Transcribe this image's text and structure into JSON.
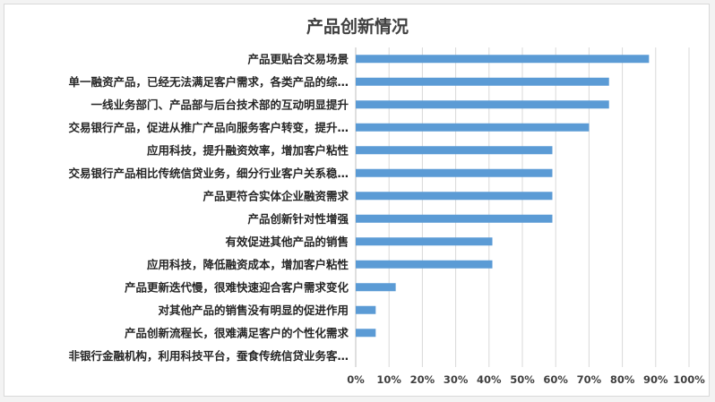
{
  "chart_data": {
    "type": "bar",
    "orientation": "horizontal",
    "title": "产品创新情况",
    "xlabel": "",
    "ylabel": "",
    "categories": [
      "产品更贴合交易场景",
      "单一融资产品，已经无法满足客户需求，各类产品的综…",
      "一线业务部门、产品部与后台技术部的互动明显提升",
      "交易银行产品，促进从推广产品向服务客户转变，提升…",
      "应用科技，提升融资效率，增加客户粘性",
      "交易银行产品相比传统信贷业务，细分行业客户关系稳…",
      "产品更符合实体企业融资需求",
      "产品创新针对性增强",
      "有效促进其他产品的销售",
      "应用科技，降低融资成本，增加客户粘性",
      "产品更新迭代慢，很难快速迎合客户需求变化",
      "对其他产品的销售没有明显的促进作用",
      "产品创新流程长，很难满足客户的个性化需求",
      "非银行金融机构，利用科技平台，蚕食传统信贷业务客…"
    ],
    "values": [
      88,
      76,
      76,
      70,
      59,
      59,
      59,
      59,
      41,
      41,
      12,
      6,
      6,
      0
    ],
    "xlim": [
      0,
      100
    ],
    "xticks": [
      "0%",
      "10%",
      "20%",
      "30%",
      "40%",
      "50%",
      "60%",
      "70%",
      "80%",
      "90%",
      "100%"
    ],
    "grid": true,
    "bar_color": "#5b9bd5"
  }
}
